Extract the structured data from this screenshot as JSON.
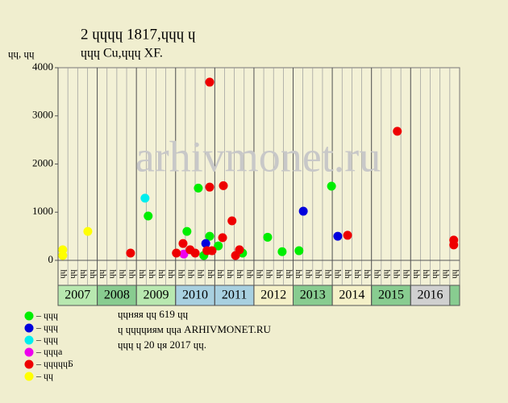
{
  "chart_data": {
    "type": "scatter",
    "title": "2 ɥɥɥɥ 1817,ɥɥɥ ɥ",
    "subtitle": "ɥɥɥ Cu,ɥɥɥ XF.",
    "y_label": "ɥɥ, ɥɥ",
    "watermark": "arhivmonet.ru",
    "xlim": [
      2007,
      2017.25
    ],
    "ylim": [
      0,
      4000
    ],
    "yticks": [
      0,
      1000,
      2000,
      3000,
      4000
    ],
    "xticks": [
      2007,
      2008,
      2009,
      2010,
      2011,
      2012,
      2013,
      2014,
      2015,
      2016
    ],
    "year_colors": [
      "#b8e8b0",
      "#88cc90",
      "#b8e8b0",
      "#a8d0e0",
      "#a8d0e0",
      "#f4f0c8",
      "#88cc90",
      "#f4f0c8",
      "#88cc90",
      "#d0d0d0",
      "#88cc90"
    ],
    "quarter_labels": [
      "ɥɥ",
      "ɥɥ",
      "ɥɥ",
      "ɥɥ"
    ],
    "series": [
      {
        "name": "– ɥɥɥ",
        "color": "#00ee00",
        "x": [
          2009.3,
          2010.29,
          2010.58,
          2010.87,
          2011.09,
          2010.72,
          2011.71,
          2012.35,
          2012.72,
          2013.15,
          2013.98
        ],
        "values": [
          920,
          600,
          1500,
          500,
          300,
          100,
          150,
          480,
          180,
          200,
          1540
        ]
      },
      {
        "name": "– ɥɥɥ",
        "color": "#0000dd",
        "x": [
          2010.77,
          2013.26,
          2014.14
        ],
        "values": [
          350,
          1020,
          500
        ]
      },
      {
        "name": "– ɥɥɥ",
        "color": "#00eeee",
        "x": [
          2009.22
        ],
        "values": [
          1290
        ]
      },
      {
        "name": "– ɥɥɥа",
        "color": "#ee00ee",
        "x": [
          2010.21
        ],
        "values": [
          130
        ]
      },
      {
        "name": "– ɥɥɥɥɥБ",
        "color": "#ee0000",
        "x": [
          2008.85,
          2010.02,
          2010.19,
          2010.37,
          2010.5,
          2010.87,
          2010.87,
          2010.8,
          2010.93,
          2011.22,
          2011.2,
          2011.44,
          2011.53,
          2011.63,
          2014.39,
          2015.66,
          2017.1,
          2017.1
        ],
        "values": [
          150,
          150,
          350,
          220,
          150,
          3700,
          1520,
          200,
          200,
          1550,
          470,
          820,
          100,
          220,
          520,
          2680,
          420,
          320
        ]
      },
      {
        "name": "– ɥɥ",
        "color": "#ffff00",
        "x": [
          2007.12,
          2007.12,
          2007.76
        ],
        "values": [
          220,
          100,
          600
        ]
      }
    ],
    "notes": [
      "ɥɥняя ɥɥ 619 ɥɥ",
      "ɥ ɥɥɥɥиям ɥɥа ARHIVMONET.RU",
      "ɥɥɥ ɥ 20 ɥя 2017 ɥɥ."
    ]
  }
}
